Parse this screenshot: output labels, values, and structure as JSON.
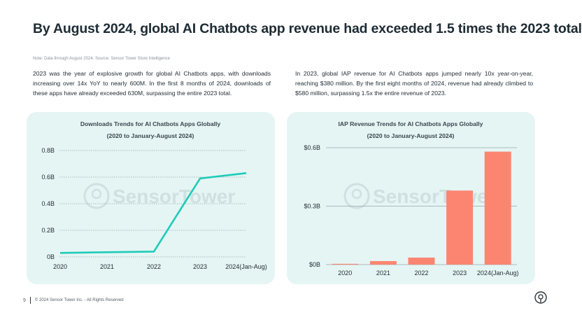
{
  "header": {
    "title": "By August 2024, global AI Chatbots app revenue had exceeded 1.5 times the 2023 total",
    "note": "Note: Data through August 2024. Source: Sensor Tower Store Intelligence"
  },
  "paragraphs": {
    "left": "2023 was the year of explosive growth for global AI Chatbots apps, with downloads increasing over 14x YoY to nearly 600M. In the first 8 months of 2024, downloads of these apps have already exceeded 630M, surpassing the entire 2023 total.",
    "right": "In 2023, global IAP revenue for AI Chatbots apps jumped nearly 10x year-on-year, reaching $380 million. By the first eight months of 2024, revenue had already climbed to $580 million, surpassing 1.5x the entire revenue of 2023."
  },
  "watermark": "SensorTower",
  "footer": {
    "page_number": "9",
    "copyright": "© 2024 Sensor Tower Inc. - All Rights Reserved"
  },
  "colors": {
    "card_bg": "#e5f5f4",
    "line": "#1ecbb8",
    "bar": "#fb8571",
    "axis_text": "#1f2a30",
    "grid": "#9aa5aa"
  },
  "chart_data": [
    {
      "type": "line",
      "title_line1": "Downloads Trends for AI Chatbots Apps Globally",
      "title_line2": "(2020 to January-August 2024)",
      "categories": [
        "2020",
        "2021",
        "2022",
        "2023",
        "2024(Jan-Aug)"
      ],
      "values": [
        0.03,
        0.035,
        0.04,
        0.59,
        0.63
      ],
      "ylim": [
        0,
        0.8
      ],
      "yticks": [
        0,
        0.2,
        0.4,
        0.6,
        0.8
      ],
      "ytick_labels": [
        "0B",
        "0.2B",
        "0.4B",
        "0.6B",
        "0.8B"
      ],
      "grid": true
    },
    {
      "type": "bar",
      "title_line1": "IAP Revenue Trends for AI Chatbots Apps Globally",
      "title_line2": "(2020 to January-August 2024)",
      "categories": [
        "2020",
        "2021",
        "2022",
        "2023",
        "2024(Jan-Aug)"
      ],
      "values": [
        0.004,
        0.018,
        0.036,
        0.38,
        0.58
      ],
      "ylim": [
        0,
        0.6
      ],
      "yticks": [
        0,
        0.3,
        0.6
      ],
      "ytick_labels": [
        "$0B",
        "$0.3B",
        "$0.6B"
      ],
      "grid": true
    }
  ]
}
